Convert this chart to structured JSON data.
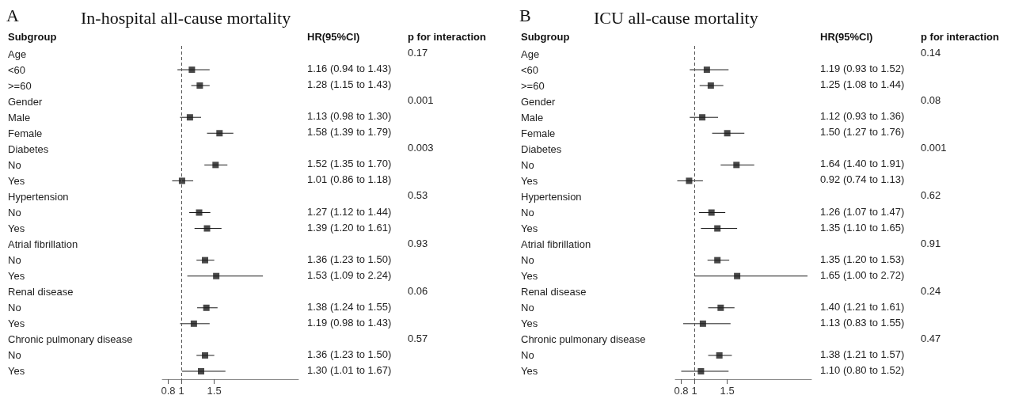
{
  "chart_data": [
    {
      "type": "scatter",
      "orientation": "horizontal",
      "title": "In-hospital all-cause mortality",
      "ylabel": "Subgroup",
      "marker": "square",
      "color": "#1a1a1a",
      "categories": [
        "Age",
        "<60",
        ">=60",
        "Gender",
        "Male",
        "Female",
        "Diabetes",
        "No",
        "Yes",
        "Hypertension",
        "No",
        "Yes",
        "Atrial fibrillation",
        "No",
        "Yes",
        "Renal disease",
        "No",
        "Yes",
        "Chronic pulmonary disease",
        "No",
        "Yes"
      ],
      "values": [
        null,
        1.16,
        1.28,
        null,
        1.13,
        1.58,
        null,
        1.52,
        1.01,
        null,
        1.27,
        1.39,
        null,
        1.36,
        1.53,
        null,
        1.38,
        1.19,
        null,
        1.36,
        1.3
      ],
      "errors": [
        null,
        [
          0.94,
          1.43
        ],
        [
          1.15,
          1.43
        ],
        null,
        [
          0.98,
          1.3
        ],
        [
          1.39,
          1.79
        ],
        null,
        [
          1.35,
          1.7
        ],
        [
          0.86,
          1.18
        ],
        null,
        [
          1.12,
          1.44
        ],
        [
          1.2,
          1.61
        ],
        null,
        [
          1.23,
          1.5
        ],
        [
          1.09,
          2.24
        ],
        null,
        [
          1.24,
          1.55
        ],
        [
          0.98,
          1.43
        ],
        null,
        [
          1.23,
          1.5
        ],
        [
          1.01,
          1.67
        ]
      ],
      "value_labels": [
        null,
        "1.16 (0.94 to 1.43)",
        "1.28 (1.15 to 1.43)",
        null,
        "1.13 (0.98 to 1.30)",
        "1.58 (1.39 to 1.79)",
        null,
        "1.52 (1.35 to 1.70)",
        "1.01 (0.86 to 1.18)",
        null,
        "1.27 (1.12 to 1.44)",
        "1.39 (1.20 to 1.61)",
        null,
        "1.36 (1.23 to 1.50)",
        "1.53 (1.09 to 2.24)",
        null,
        "1.38 (1.24 to 1.55)",
        "1.19 (0.98 to 1.43)",
        null,
        "1.36 (1.23 to 1.50)",
        "1.30 (1.01 to 1.67)"
      ],
      "xlim": [
        0.71,
        2.78
      ],
      "xticks": [
        0.8,
        1,
        1.5
      ],
      "ref_lines": [
        {
          "axis": "x",
          "value": 1,
          "line_style": "dashed",
          "color": "#555555"
        }
      ],
      "annotations": [
        "A",
        "HR(95%CI)",
        "p for interaction",
        "0.17",
        "0.001",
        "0.003",
        "0.53",
        "0.93",
        "0.06",
        "0.57"
      ]
    },
    {
      "type": "scatter",
      "orientation": "horizontal",
      "title": "ICU all-cause mortality",
      "ylabel": "Subgroup",
      "marker": "square",
      "color": "#1a1a1a",
      "categories": [
        "Age",
        "<60",
        ">=60",
        "Gender",
        "Male",
        "Female",
        "Diabetes",
        "No",
        "Yes",
        "Hypertension",
        "No",
        "Yes",
        "Atrial fibrillation",
        "No",
        "Yes",
        "Renal disease",
        "No",
        "Yes",
        "Chronic pulmonary disease",
        "No",
        "Yes"
      ],
      "values": [
        null,
        1.19,
        1.25,
        null,
        1.12,
        1.5,
        null,
        1.64,
        0.92,
        null,
        1.26,
        1.35,
        null,
        1.35,
        1.65,
        null,
        1.4,
        1.13,
        null,
        1.38,
        1.1
      ],
      "errors": [
        null,
        [
          0.93,
          1.52
        ],
        [
          1.08,
          1.44
        ],
        null,
        [
          0.93,
          1.36
        ],
        [
          1.27,
          1.76
        ],
        null,
        [
          1.4,
          1.91
        ],
        [
          0.74,
          1.13
        ],
        null,
        [
          1.07,
          1.47
        ],
        [
          1.1,
          1.65
        ],
        null,
        [
          1.2,
          1.53
        ],
        [
          1.0,
          2.72
        ],
        null,
        [
          1.21,
          1.61
        ],
        [
          0.83,
          1.55
        ],
        null,
        [
          1.21,
          1.57
        ],
        [
          0.8,
          1.52
        ]
      ],
      "value_labels": [
        null,
        "1.19 (0.93 to 1.52)",
        "1.25 (1.08 to 1.44)",
        null,
        "1.12 (0.93 to 1.36)",
        "1.50 (1.27 to 1.76)",
        null,
        "1.64 (1.40 to 1.91)",
        "0.92 (0.74 to 1.13)",
        null,
        "1.26 (1.07 to 1.47)",
        "1.35 (1.10 to 1.65)",
        null,
        "1.35 (1.20 to 1.53)",
        "1.65 (1.00 to 2.72)",
        null,
        "1.40 (1.21 to 1.61)",
        "1.13 (0.83 to 1.55)",
        null,
        "1.38 (1.21 to 1.57)",
        "1.10 (0.80 to 1.52)"
      ],
      "xlim": [
        0.71,
        2.78
      ],
      "xticks": [
        0.8,
        1,
        1.5
      ],
      "ref_lines": [
        {
          "axis": "x",
          "value": 1,
          "line_style": "dashed",
          "color": "#555555"
        }
      ],
      "annotations": [
        "B",
        "HR(95%CI)",
        "p for interaction",
        "0.14",
        "0.08",
        "0.001",
        "0.62",
        "0.91",
        "0.24",
        "0.47"
      ]
    }
  ]
}
